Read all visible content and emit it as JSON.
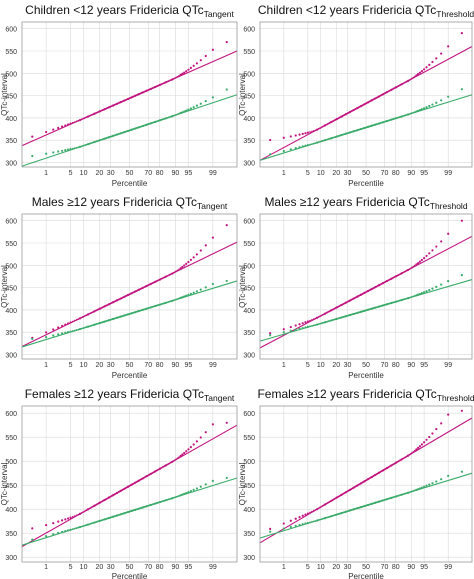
{
  "figure": {
    "background": "#ffffff",
    "panel_background": "#ffffff",
    "border_color": "#999999",
    "grid_color": "#d9d9d9",
    "series_colors": {
      "magenta": "#c2147f",
      "green": "#3aab6a"
    }
  },
  "chart_data": [
    {
      "type": "scatter",
      "title_main": "Children <12 years Fridericia QTc",
      "title_sub": "Tangent",
      "xlabel": "Percentile",
      "ylabel": "QTc-interval",
      "x_ticks": [
        "1",
        "5",
        "10",
        "20",
        "30",
        "50",
        "70",
        "80",
        "90",
        "95",
        "99"
      ],
      "y_ticks": [
        300,
        350,
        400,
        450,
        500,
        550,
        600
      ],
      "ylim": [
        290,
        615
      ],
      "grid": true,
      "series": [
        {
          "color": "magenta",
          "line": [
            338,
            550
          ],
          "point_min": 335,
          "point_max": 570,
          "curve_up": 22,
          "curve_down": 12
        },
        {
          "color": "green",
          "line": [
            292,
            452
          ],
          "point_min": 307,
          "point_max": 495,
          "curve_up": 10,
          "curve_down": 18
        }
      ]
    },
    {
      "type": "scatter",
      "title_main": "Children <12 years Fridericia QTc",
      "title_sub": "Threshold",
      "xlabel": "Percentile",
      "ylabel": "QTc-interval",
      "x_ticks": [
        "1",
        "5",
        "10",
        "20",
        "30",
        "50",
        "70",
        "80",
        "90",
        "95",
        "99"
      ],
      "y_ticks": [
        300,
        350,
        400,
        450,
        500,
        550,
        600
      ],
      "ylim": [
        290,
        615
      ],
      "grid": true,
      "series": [
        {
          "color": "magenta",
          "line": [
            305,
            560
          ],
          "point_min": 348,
          "point_max": 590,
          "curve_up": 24,
          "curve_down": 40
        },
        {
          "color": "green",
          "line": [
            305,
            452
          ],
          "point_min": 310,
          "point_max": 465,
          "curve_up": 10,
          "curve_down": 8
        }
      ]
    },
    {
      "type": "scatter",
      "title_main": "Males ≥12 years Fridericia QTc",
      "title_sub": "Tangent",
      "xlabel": "Percentile",
      "ylabel": "QTc-interval",
      "x_ticks": [
        "1",
        "5",
        "10",
        "20",
        "30",
        "50",
        "70",
        "80",
        "90",
        "95",
        "99"
      ],
      "y_ticks": [
        300,
        350,
        400,
        450,
        500,
        550,
        600
      ],
      "ylim": [
        290,
        615
      ],
      "grid": true,
      "series": [
        {
          "color": "magenta",
          "line": [
            318,
            552
          ],
          "point_min": 335,
          "point_max": 590,
          "curve_up": 30,
          "curve_down": 10
        },
        {
          "color": "green",
          "line": [
            317,
            465
          ],
          "point_min": 335,
          "point_max": 465,
          "curve_up": 8,
          "curve_down": 10
        }
      ]
    },
    {
      "type": "scatter",
      "title_main": "Males ≥12 years Fridericia QTc",
      "title_sub": "Threshold",
      "xlabel": "Percentile",
      "ylabel": "QTc-interval",
      "x_ticks": [
        "1",
        "5",
        "10",
        "20",
        "30",
        "50",
        "70",
        "80",
        "90",
        "95",
        "99"
      ],
      "y_ticks": [
        300,
        350,
        400,
        450,
        500,
        550,
        600
      ],
      "ylim": [
        290,
        615
      ],
      "grid": true,
      "series": [
        {
          "color": "magenta",
          "line": [
            315,
            565
          ],
          "point_min": 345,
          "point_max": 600,
          "curve_up": 28,
          "curve_down": 25
        },
        {
          "color": "green",
          "line": [
            330,
            468
          ],
          "point_min": 335,
          "point_max": 478,
          "curve_up": 10,
          "curve_down": 8
        }
      ]
    },
    {
      "type": "scatter",
      "title_main": "Females ≥12 years Fridericia QTc",
      "title_sub": "Tangent",
      "xlabel": "Percentile",
      "ylabel": "QTc-interval",
      "x_ticks": [
        "1",
        "5",
        "10",
        "20",
        "30",
        "50",
        "70",
        "80",
        "90",
        "95",
        "99"
      ],
      "y_ticks": [
        300,
        350,
        400,
        450,
        500,
        550,
        600
      ],
      "ylim": [
        290,
        615
      ],
      "grid": true,
      "series": [
        {
          "color": "magenta",
          "line": [
            322,
            575
          ],
          "point_min": 360,
          "point_max": 580,
          "curve_up": 25,
          "curve_down": 30
        },
        {
          "color": "green",
          "line": [
            325,
            465
          ],
          "point_min": 330,
          "point_max": 465,
          "curve_up": 8,
          "curve_down": 6
        }
      ]
    },
    {
      "type": "scatter",
      "title_main": "Females ≥12 years Fridericia QTc",
      "title_sub": "Threshold",
      "xlabel": "Percentile",
      "ylabel": "QTc-interval",
      "x_ticks": [
        "1",
        "5",
        "10",
        "20",
        "30",
        "50",
        "70",
        "80",
        "90",
        "95",
        "99"
      ],
      "y_ticks": [
        300,
        350,
        400,
        450,
        500,
        550,
        600
      ],
      "ylim": [
        290,
        615
      ],
      "grid": true,
      "series": [
        {
          "color": "magenta",
          "line": [
            330,
            590
          ],
          "point_min": 355,
          "point_max": 605,
          "curve_up": 30,
          "curve_down": 20
        },
        {
          "color": "green",
          "line": [
            340,
            475
          ],
          "point_min": 345,
          "point_max": 478,
          "curve_up": 8,
          "curve_down": 8
        }
      ]
    }
  ]
}
